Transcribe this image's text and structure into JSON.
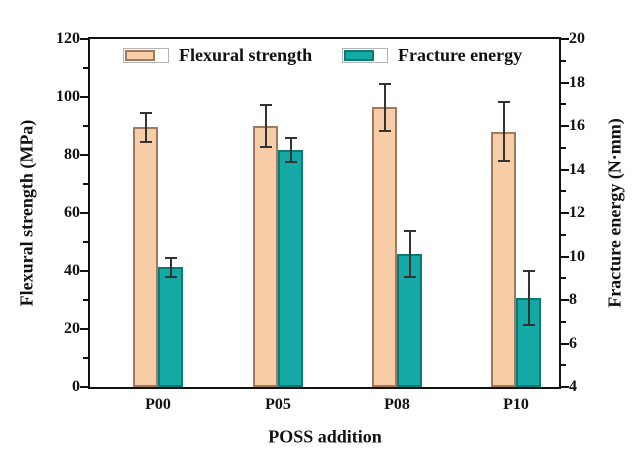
{
  "chart_data": {
    "type": "bar",
    "title": "",
    "xlabel": "POSS addition",
    "categories": [
      "P00",
      "P05",
      "P08",
      "P10"
    ],
    "series": [
      {
        "name": "Flexural strength",
        "axis": "left",
        "unit": "MPa",
        "color": "#f6cda6",
        "border_color": "#a1795f",
        "values": [
          89.5,
          90,
          96.5,
          88
        ],
        "errors": [
          5.5,
          7.5,
          8.5,
          10.5
        ]
      },
      {
        "name": "Fracture energy",
        "axis": "right",
        "unit": "N·mm",
        "color": "#14a9a5",
        "border_color": "#0b7a77",
        "values": [
          9.5,
          14.9,
          10.1,
          8.1
        ],
        "errors": [
          0.5,
          0.6,
          1.1,
          1.3
        ]
      }
    ],
    "left_axis": {
      "label": "Flexural strength (MPa)",
      "min": 0,
      "max": 120,
      "major_ticks": [
        0,
        20,
        40,
        60,
        80,
        100,
        120
      ],
      "minor_step": 10
    },
    "right_axis": {
      "label": "Fracture energy (N·mm)",
      "min": 4,
      "max": 20,
      "major_ticks": [
        4,
        6,
        8,
        10,
        12,
        14,
        16,
        18,
        20
      ],
      "minor_step": 1
    },
    "legend_position": "top-inside",
    "grid": false,
    "error_bars": true,
    "colors": {
      "axis": "#111111",
      "error_bar": "#333333",
      "background": "#ffffff"
    }
  }
}
